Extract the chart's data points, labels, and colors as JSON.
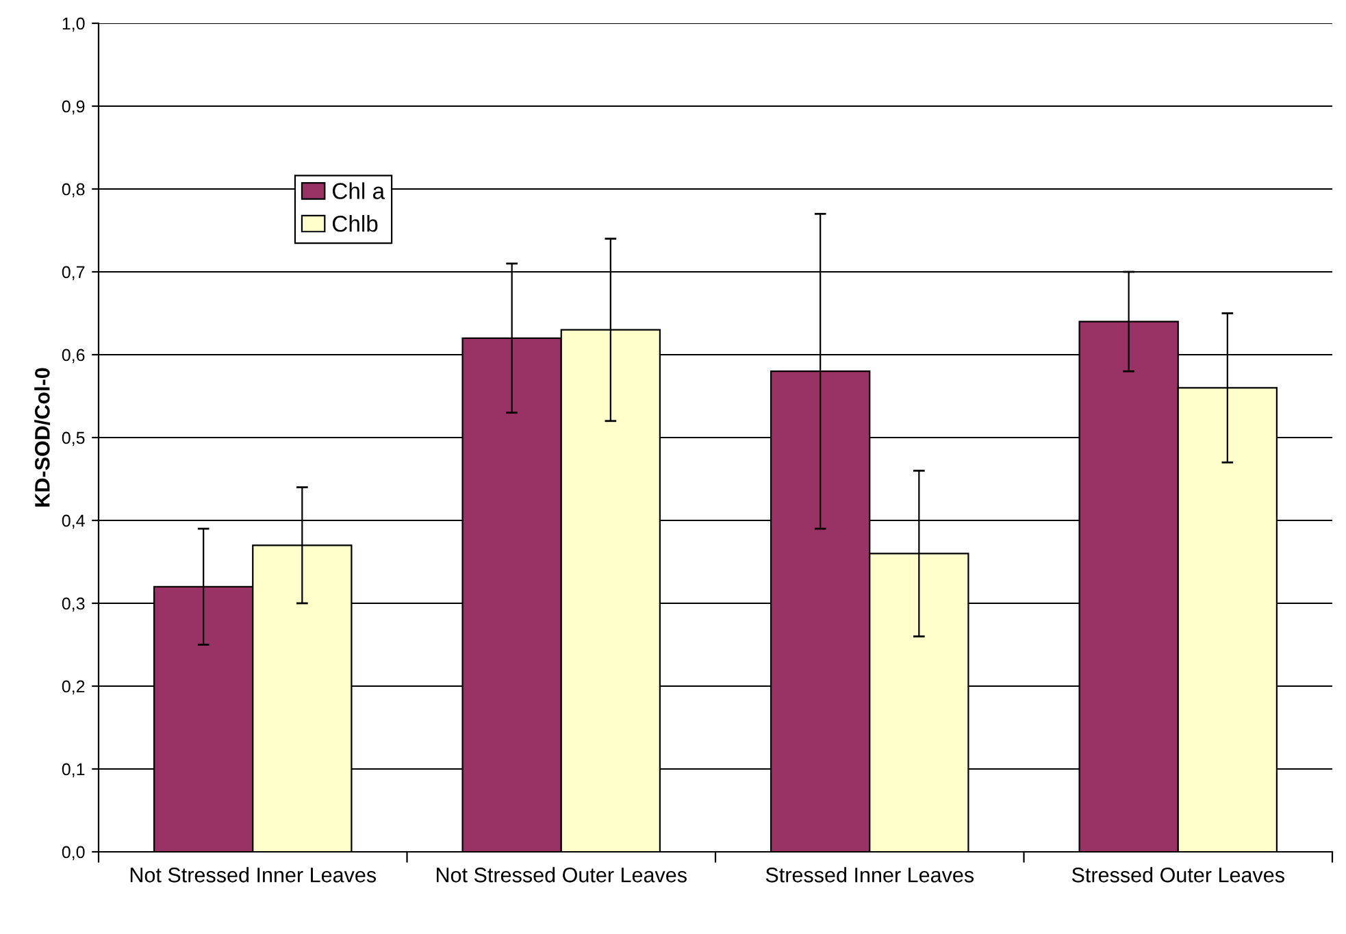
{
  "chart_data": {
    "type": "bar",
    "ylabel": "KD-SOD/Col-0",
    "categories": [
      "Not Stressed Inner Leaves",
      "Not Stressed Outer Leaves",
      "Stressed Inner Leaves",
      "Stressed Outer Leaves"
    ],
    "series": [
      {
        "name": "Chl a",
        "color": "#993366",
        "values": [
          0.32,
          0.62,
          0.58,
          0.64
        ],
        "errors": [
          0.07,
          0.09,
          0.19,
          0.06
        ]
      },
      {
        "name": "Chlb",
        "color": "#ffffcc",
        "values": [
          0.37,
          0.63,
          0.36,
          0.56
        ],
        "errors": [
          0.07,
          0.11,
          0.1,
          0.09
        ]
      }
    ],
    "ylim": [
      0,
      1
    ],
    "yticks": [
      {
        "value": 0,
        "label": "0,0"
      },
      {
        "value": 0.1,
        "label": "0,1"
      },
      {
        "value": 0.2,
        "label": "0,2"
      },
      {
        "value": 0.3,
        "label": "0,3"
      },
      {
        "value": 0.4,
        "label": "0,4"
      },
      {
        "value": 0.5,
        "label": "0,5"
      },
      {
        "value": 0.6,
        "label": "0,6"
      },
      {
        "value": 0.7,
        "label": "0,7"
      },
      {
        "value": 0.8,
        "label": "0,8"
      },
      {
        "value": 0.9,
        "label": "0,9"
      },
      {
        "value": 1,
        "label": "1,0"
      }
    ],
    "grid": "y",
    "legend": "top left"
  }
}
